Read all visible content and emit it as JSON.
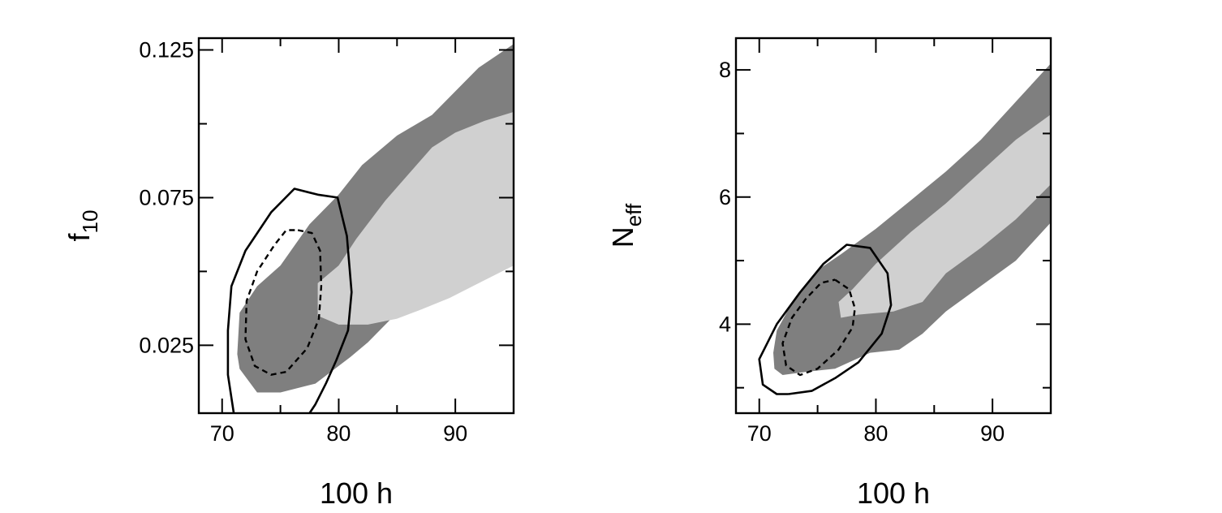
{
  "chart_data": [
    {
      "type": "contour",
      "xlabel": "100 h",
      "ylabel": {
        "main": "f",
        "sub": "10"
      },
      "xlim": [
        68,
        95
      ],
      "ylim": [
        0.002,
        0.129
      ],
      "xticks": [
        70,
        80,
        90
      ],
      "xticklabels": [
        "70",
        "80",
        "90"
      ],
      "xminor": [
        75,
        85
      ],
      "yticks": [
        0.025,
        0.075,
        0.125
      ],
      "yticklabels": [
        "0.025",
        "0.075",
        "0.125"
      ],
      "yminor": [
        0.05,
        0.1
      ],
      "regions": [
        {
          "name": "",
          "level": "outer",
          "color": "#7f7f7f",
          "points": [
            [
              71.3,
              0.022
            ],
            [
              71.5,
              0.036
            ],
            [
              73,
              0.045
            ],
            [
              75,
              0.052
            ],
            [
              77.5,
              0.066
            ],
            [
              80,
              0.076
            ],
            [
              82,
              0.086
            ],
            [
              85,
              0.096
            ],
            [
              88,
              0.103
            ],
            [
              90,
              0.111
            ],
            [
              92,
              0.119
            ],
            [
              95,
              0.127
            ],
            [
              95,
              0.067
            ],
            [
              92,
              0.058
            ],
            [
              89.5,
              0.048
            ],
            [
              86.5,
              0.041
            ],
            [
              84.5,
              0.034
            ],
            [
              82.5,
              0.026
            ],
            [
              81,
              0.021
            ],
            [
              78,
              0.012
            ],
            [
              75,
              0.009
            ],
            [
              73,
              0.009
            ],
            [
              71.5,
              0.017
            ]
          ]
        },
        {
          "name": "",
          "level": "inner",
          "color": "#d0d0d0",
          "points": [
            [
              78.2,
              0.035
            ],
            [
              78.2,
              0.046
            ],
            [
              80,
              0.052
            ],
            [
              81.5,
              0.061
            ],
            [
              84,
              0.074
            ],
            [
              86,
              0.083
            ],
            [
              88,
              0.092
            ],
            [
              90,
              0.097
            ],
            [
              92.5,
              0.101
            ],
            [
              95,
              0.104
            ],
            [
              95,
              0.052
            ],
            [
              92,
              0.046
            ],
            [
              89.5,
              0.041
            ],
            [
              87,
              0.037
            ],
            [
              85,
              0.034
            ],
            [
              82.5,
              0.032
            ],
            [
              80,
              0.032
            ]
          ]
        }
      ],
      "contours": [
        {
          "name": "",
          "style": "solid",
          "points": [
            [
              71,
              0.002
            ],
            [
              70.5,
              0.015
            ],
            [
              70.5,
              0.03
            ],
            [
              70.8,
              0.045
            ],
            [
              72,
              0.057
            ],
            [
              74.2,
              0.07
            ],
            [
              76.2,
              0.078
            ],
            [
              78.2,
              0.076
            ],
            [
              79.9,
              0.075
            ],
            [
              80.7,
              0.062
            ],
            [
              81.1,
              0.043
            ],
            [
              80.8,
              0.03
            ],
            [
              79.8,
              0.02
            ],
            [
              78.9,
              0.012
            ],
            [
              78,
              0.005
            ],
            [
              77.5,
              0.002
            ]
          ]
        },
        {
          "name": "",
          "style": "dashed",
          "points": [
            [
              76.5,
              0.064
            ],
            [
              77.7,
              0.063
            ],
            [
              78.4,
              0.057
            ],
            [
              78.5,
              0.045
            ],
            [
              78.3,
              0.034
            ],
            [
              77.3,
              0.024
            ],
            [
              75.5,
              0.016
            ],
            [
              74.2,
              0.015
            ],
            [
              72.8,
              0.018
            ],
            [
              72,
              0.027
            ],
            [
              72.1,
              0.04
            ],
            [
              73,
              0.05
            ],
            [
              74.5,
              0.059
            ],
            [
              75.5,
              0.064
            ],
            [
              76.5,
              0.064
            ]
          ]
        }
      ]
    },
    {
      "type": "contour",
      "xlabel": "100 h",
      "ylabel": {
        "main": "N",
        "sub": "eff"
      },
      "xlim": [
        68,
        95
      ],
      "ylim": [
        2.6,
        8.5
      ],
      "xticks": [
        70,
        80,
        90
      ],
      "xticklabels": [
        "70",
        "80",
        "90"
      ],
      "xminor": [
        75,
        85
      ],
      "yticks": [
        4,
        6,
        8
      ],
      "yticklabels": [
        "4",
        "6",
        "8"
      ],
      "yminor": [
        3,
        5,
        7
      ],
      "regions": [
        {
          "name": "",
          "level": "outer",
          "color": "#7f7f7f",
          "points": [
            [
              71.3,
              3.3
            ],
            [
              71.2,
              3.55
            ],
            [
              71.5,
              3.9
            ],
            [
              73,
              4.4
            ],
            [
              75,
              4.85
            ],
            [
              77,
              5.1
            ],
            [
              80,
              5.5
            ],
            [
              83,
              5.95
            ],
            [
              86,
              6.4
            ],
            [
              89,
              6.9
            ],
            [
              92,
              7.5
            ],
            [
              95,
              8.1
            ],
            [
              95,
              5.6
            ],
            [
              92,
              5.0
            ],
            [
              89,
              4.6
            ],
            [
              86,
              4.2
            ],
            [
              84,
              3.85
            ],
            [
              82,
              3.6
            ],
            [
              79.5,
              3.55
            ],
            [
              76.5,
              3.3
            ],
            [
              74,
              3.25
            ],
            [
              72,
              3.2
            ]
          ]
        },
        {
          "name": "",
          "level": "inner",
          "color": "#d0d0d0",
          "points": [
            [
              76.8,
              4.35
            ],
            [
              78,
              4.55
            ],
            [
              80,
              4.95
            ],
            [
              83,
              5.45
            ],
            [
              86,
              5.9
            ],
            [
              89,
              6.4
            ],
            [
              92,
              6.9
            ],
            [
              95,
              7.3
            ],
            [
              95,
              6.2
            ],
            [
              92,
              5.65
            ],
            [
              89,
              5.2
            ],
            [
              86,
              4.8
            ],
            [
              84,
              4.35
            ],
            [
              81.5,
              4.2
            ],
            [
              78.5,
              4.15
            ],
            [
              77,
              4.1
            ]
          ]
        }
      ],
      "contours": [
        {
          "name": "",
          "style": "solid",
          "points": [
            [
              72.5,
              2.9
            ],
            [
              74.5,
              2.95
            ],
            [
              76.5,
              3.15
            ],
            [
              78.5,
              3.4
            ],
            [
              80.5,
              3.85
            ],
            [
              81.3,
              4.3
            ],
            [
              81,
              4.8
            ],
            [
              79.5,
              5.2
            ],
            [
              77.5,
              5.25
            ],
            [
              75.5,
              4.95
            ],
            [
              73.5,
              4.5
            ],
            [
              71.5,
              4.0
            ],
            [
              70,
              3.45
            ],
            [
              70.3,
              3.05
            ],
            [
              71.5,
              2.9
            ],
            [
              72.5,
              2.9
            ]
          ]
        },
        {
          "name": "",
          "style": "dashed",
          "points": [
            [
              76.5,
              4.7
            ],
            [
              77.7,
              4.55
            ],
            [
              78.2,
              4.25
            ],
            [
              78,
              3.95
            ],
            [
              76.8,
              3.6
            ],
            [
              75,
              3.3
            ],
            [
              73.5,
              3.2
            ],
            [
              72.3,
              3.35
            ],
            [
              72,
              3.7
            ],
            [
              72.8,
              4.1
            ],
            [
              74,
              4.4
            ],
            [
              75.3,
              4.65
            ],
            [
              76.5,
              4.7
            ]
          ]
        }
      ]
    }
  ]
}
